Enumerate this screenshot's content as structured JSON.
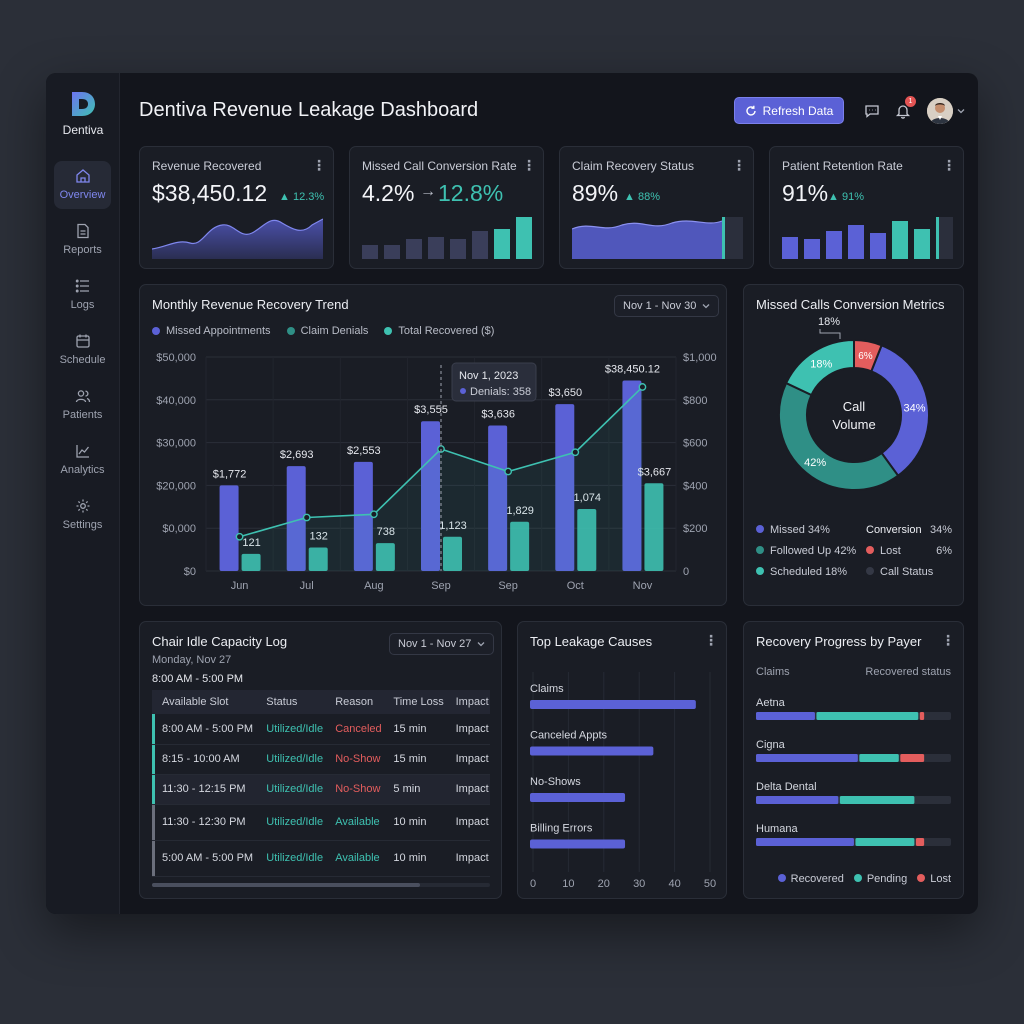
{
  "app": {
    "brand": "Dentiva",
    "title": "Dentiva Revenue Leakage Dashboard"
  },
  "header": {
    "refresh_label": "Refresh Data",
    "notification_count": "1"
  },
  "sidebar": {
    "items": [
      {
        "label": "Overview",
        "icon": "home-icon",
        "active": true
      },
      {
        "label": "Reports",
        "icon": "document-icon"
      },
      {
        "label": "Logs",
        "icon": "list-icon"
      },
      {
        "label": "Schedule",
        "icon": "calendar-icon"
      },
      {
        "label": "Patients",
        "icon": "users-icon"
      },
      {
        "label": "Analytics",
        "icon": "chart-icon"
      },
      {
        "label": "Settings",
        "icon": "gear-icon"
      }
    ]
  },
  "kpis": [
    {
      "title": "Revenue Recovered",
      "value": "$38,450.12",
      "delta": "12.3%"
    },
    {
      "title": "Missed Call Conversion Rate",
      "value": "4.2%",
      "value2": "12.8%"
    },
    {
      "title": "Claim Recovery Status",
      "value": "89%",
      "delta": "88%"
    },
    {
      "title": "Patient Retention Rate",
      "value": "91%",
      "delta": "91%"
    }
  ],
  "trend": {
    "title": "Monthly Revenue Recovery Trend",
    "range": "Nov 1 - Nov 30",
    "legend": [
      "Missed Appointments",
      "Claim Denials",
      "Total Recovered ($)"
    ],
    "tooltip": {
      "date": "Nov 1, 2023",
      "label": "Denials: 358"
    }
  },
  "chart_data": [
    {
      "type": "bar",
      "title": "Monthly Revenue Recovery Trend",
      "categories": [
        "Jun",
        "Jul",
        "Aug",
        "Sep",
        "Sep",
        "Oct",
        "Nov"
      ],
      "y_left_ticks": [
        "$50,000",
        "$40,000",
        "$30,000",
        "$20,000",
        "$0,000",
        "$0"
      ],
      "y_right_ticks": [
        "$1,000",
        "$800",
        "$600",
        "$400",
        "$200",
        "0"
      ],
      "ylim_left": [
        0,
        50000
      ],
      "ylim_right": [
        0,
        1000
      ],
      "series": [
        {
          "name": "Missed Appointments",
          "values": [
            20000,
            24500,
            25500,
            35000,
            34000,
            39000,
            44500
          ],
          "labels": [
            "$1,772",
            "$2,693",
            "$2,553",
            "$3,555",
            "$3,636",
            "$3,650",
            "$38,450.12"
          ]
        },
        {
          "name": "Claim Denials",
          "values": [
            4000,
            5500,
            6500,
            8000,
            11500,
            14500,
            20500
          ],
          "labels": [
            "121",
            "132",
            "738",
            "1,123",
            "1,829",
            "1,074",
            "$3,667"
          ]
        },
        {
          "name": "Total Recovered ($)",
          "values": [
            160,
            250,
            265,
            570,
            465,
            555,
            860
          ]
        }
      ]
    },
    {
      "type": "pie",
      "title": "Missed Calls Conversion Metrics",
      "center_label": [
        "Call",
        "Volume"
      ],
      "slices": [
        {
          "label": "34%",
          "value": 34,
          "color": "#5b61d6"
        },
        {
          "label": "42%",
          "value": 42,
          "color": "#2f8f86"
        },
        {
          "label": "18%",
          "value": 18,
          "color": "#3ec1b1"
        },
        {
          "label": "6%",
          "value": 6,
          "color": "#e35d5d"
        }
      ],
      "callout": "18%"
    },
    {
      "type": "bar",
      "title": "Top Leakage Causes",
      "categories": [
        "Claims",
        "Canceled Appts",
        "No-Shows",
        "Billing Errors"
      ],
      "values": [
        46,
        34,
        26,
        26
      ],
      "x_ticks": [
        "0",
        "10",
        "20",
        "30",
        "40",
        "50"
      ],
      "xlim": [
        0,
        50
      ]
    },
    {
      "type": "bar",
      "title": "Recovery Progress by Payer",
      "categories": [
        "Aetna",
        "Cigna",
        "Delta Dental",
        "Humana"
      ],
      "series": [
        {
          "name": "Recovered",
          "values": [
            31,
            53,
            43,
            51
          ]
        },
        {
          "name": "Pending",
          "values": [
            53,
            21,
            39,
            31
          ]
        },
        {
          "name": "Lost",
          "values": [
            3,
            13,
            0,
            5
          ]
        }
      ]
    }
  ],
  "donut": {
    "title": "Missed Calls Conversion Metrics",
    "legend_left": [
      "Missed 34%",
      "Followed Up 42%",
      "Scheduled 18%"
    ],
    "legend_right": [
      {
        "label": "Conversion",
        "value": "34%"
      },
      {
        "label": "Lost",
        "value": "6%"
      },
      {
        "label": "Call Status",
        "value": ""
      }
    ]
  },
  "idle_log": {
    "title": "Chair Idle Capacity Log",
    "date": "Monday, Nov 27",
    "hours": "8:00 AM - 5:00 PM",
    "range": "Nov 1 - Nov 27",
    "columns": [
      "Available Slot",
      "Status",
      "Reason",
      "Time Loss",
      "Impact"
    ],
    "rows": [
      [
        "8:00 AM - 5:00 PM",
        "Utilized/Idle",
        "Canceled",
        "15 min",
        "Impact"
      ],
      [
        "8:15 - 10:00 AM",
        "Utilized/Idle",
        "No-Show",
        "15 min",
        "Impact"
      ],
      [
        "11:30 - 12:15 PM",
        "Utilized/Idle",
        "No-Show",
        "5 min",
        "Impact"
      ],
      [
        "11:30 - 12:30 PM",
        "Utilized/Idle",
        "Available",
        "10 min",
        "Impact"
      ],
      [
        "5:00 AM - 5:00 PM",
        "Utilized/Idle",
        "Available",
        "10 min",
        "Impact"
      ]
    ]
  },
  "leakage": {
    "title": "Top Leakage Causes"
  },
  "payer": {
    "title": "Recovery Progress by Payer",
    "col_left": "Claims",
    "col_right": "Recovered status",
    "legend": [
      "Recovered",
      "Pending",
      "Lost"
    ]
  },
  "colors": {
    "accent": "#5b61d6",
    "teal": "#3ec1b1",
    "dark_teal": "#2f8f86",
    "red": "#e35d5d"
  }
}
